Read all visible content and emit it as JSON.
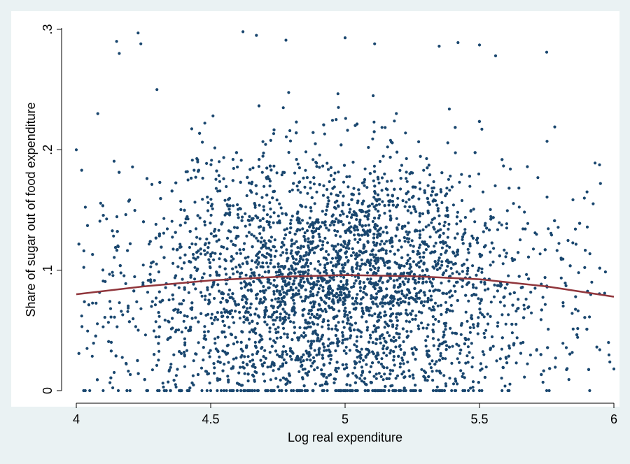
{
  "chart_data": {
    "type": "scatter",
    "title": "",
    "xlabel": "Log real expenditure",
    "ylabel": "Share of sugar out of food expenditure",
    "xlim": [
      4,
      6
    ],
    "ylim": [
      0,
      0.3
    ],
    "x_ticks": [
      4,
      4.5,
      5,
      5.5,
      6
    ],
    "x_tick_labels": [
      "4",
      "4.5",
      "5",
      "5.5",
      "6"
    ],
    "y_ticks": [
      0,
      0.1,
      0.2,
      0.3
    ],
    "y_tick_labels": [
      "0",
      ".1",
      ".2",
      ".3"
    ],
    "grid": false,
    "legend": "none",
    "colors": {
      "background": "#eaf2f3",
      "plot_area": "#ffffff",
      "points": "#1a476f",
      "fit_line": "#90353b"
    },
    "series": [
      {
        "kind": "points",
        "points_shown": 4200,
        "x_range": [
          4,
          6
        ],
        "y_range": [
          0,
          0.3
        ],
        "x_center": 4.95,
        "y_center": 0.09,
        "y_zero_line": 0,
        "sample_points": [
          [
            4.0,
            0.2
          ],
          [
            4.02,
            0.183
          ],
          [
            4.08,
            0.23
          ],
          [
            4.15,
            0.29
          ],
          [
            4.16,
            0.28
          ],
          [
            4.23,
            0.297
          ],
          [
            4.24,
            0.288
          ],
          [
            4.3,
            0.25
          ],
          [
            4.62,
            0.298
          ],
          [
            4.67,
            0.295
          ],
          [
            4.78,
            0.291
          ],
          [
            5.0,
            0.293
          ],
          [
            5.11,
            0.288
          ],
          [
            5.35,
            0.286
          ],
          [
            5.42,
            0.289
          ],
          [
            5.5,
            0.287
          ],
          [
            5.56,
            0.278
          ],
          [
            5.75,
            0.281
          ],
          [
            5.78,
            0.219
          ],
          [
            5.93,
            0.189
          ],
          [
            5.95,
            0.172
          ],
          [
            5.9,
            0.165
          ],
          [
            5.98,
            0.04
          ],
          [
            6.0,
            0.018
          ],
          [
            4.05,
            0.0
          ],
          [
            4.1,
            0.0
          ],
          [
            4.2,
            0.0
          ],
          [
            4.5,
            0.0
          ],
          [
            4.8,
            0.0
          ],
          [
            5.0,
            0.0
          ],
          [
            5.2,
            0.0
          ],
          [
            5.5,
            0.0
          ],
          [
            5.75,
            0.0
          ],
          [
            5.91,
            0.0
          ],
          [
            4.02,
            0.062
          ],
          [
            4.04,
            0.035
          ],
          [
            4.1,
            0.053
          ],
          [
            4.9,
            0.06
          ],
          [
            5.0,
            0.075
          ],
          [
            4.8,
            0.12
          ]
        ]
      },
      {
        "kind": "fitted-line",
        "x": [
          4.0,
          4.25,
          4.5,
          4.75,
          5.0,
          5.25,
          5.5,
          5.75,
          6.0
        ],
        "y": [
          0.08,
          0.0865,
          0.0915,
          0.0945,
          0.096,
          0.095,
          0.0925,
          0.0865,
          0.078
        ]
      }
    ]
  }
}
